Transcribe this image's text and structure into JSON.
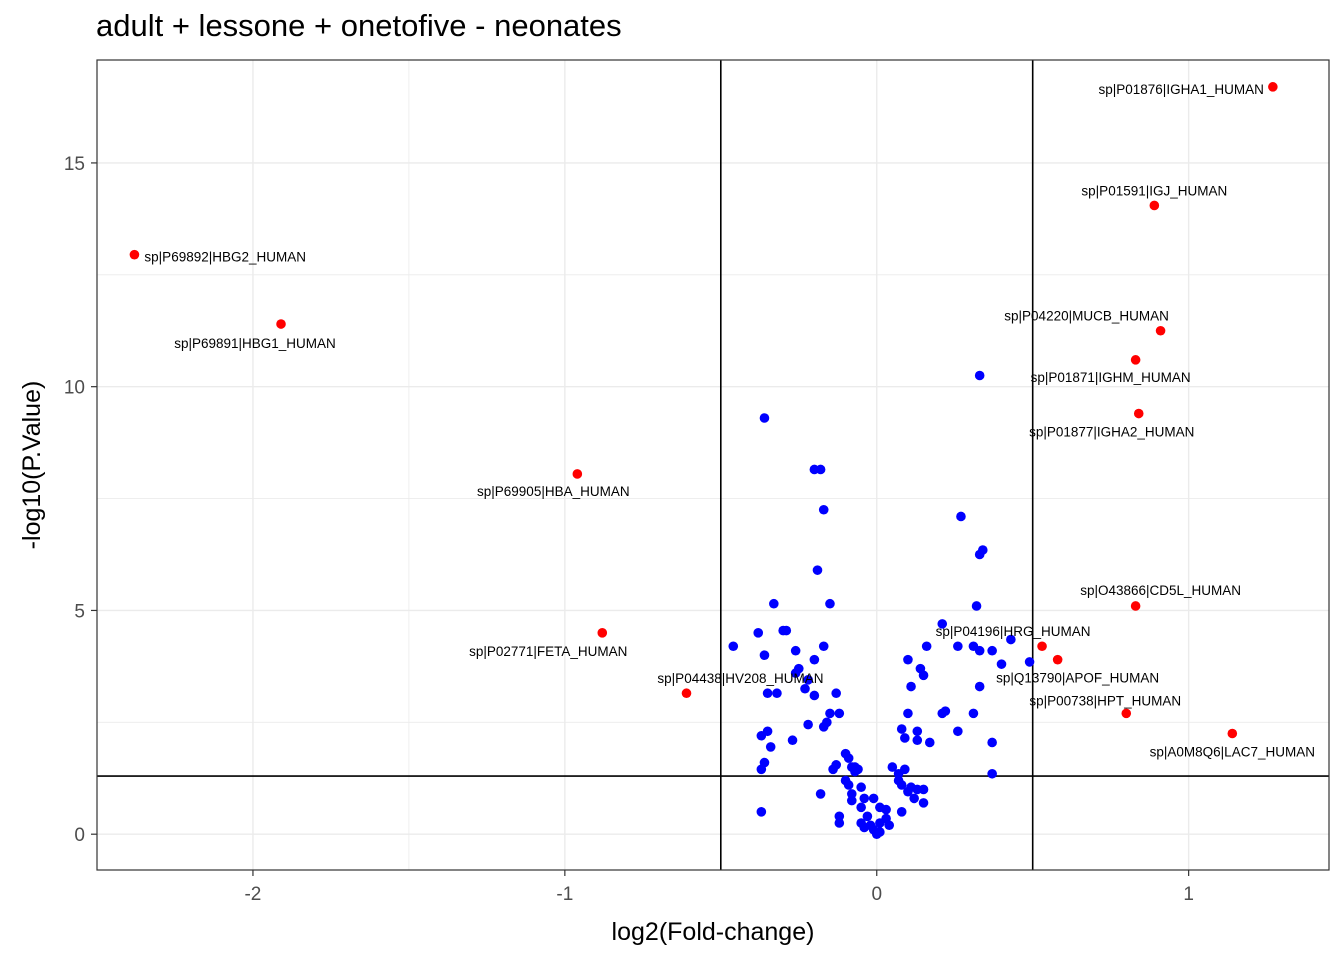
{
  "chart_data": {
    "type": "scatter",
    "title": "adult + lessone + onetofive - neonates",
    "xlabel": "log2(Fold-change)",
    "ylabel": "-log10(P.Value)",
    "xlim": [
      -2.5,
      1.45
    ],
    "ylim": [
      -0.8,
      17.3
    ],
    "x_ticks": [
      -2,
      -1,
      0,
      1
    ],
    "x_tick_labels": [
      "-2",
      "-1",
      "0",
      "1"
    ],
    "y_ticks": [
      0,
      5,
      10,
      15
    ],
    "y_tick_labels": [
      "0",
      "5",
      "10",
      "15"
    ],
    "grid": true,
    "legend": "none",
    "thresholds": {
      "vlines": [
        -0.5,
        0.5
      ],
      "hline": 1.3
    },
    "colors": {
      "significant": "#ff0000",
      "not_significant": "#0000ff",
      "grid": "#ebebeb",
      "panel_border": "#333333",
      "threshold_line": "#000000"
    },
    "series": [
      {
        "color": "#ff0000",
        "points": [
          {
            "x": 1.27,
            "y": 16.7,
            "label": "sp|P01876|IGHA1_HUMAN"
          },
          {
            "x": 0.89,
            "y": 14.05,
            "label": "sp|P01591|IGJ_HUMAN"
          },
          {
            "x": -2.38,
            "y": 12.95,
            "label": "sp|P69892|HBG2_HUMAN"
          },
          {
            "x": -1.91,
            "y": 11.4,
            "label": "sp|P69891|HBG1_HUMAN"
          },
          {
            "x": 0.91,
            "y": 11.25,
            "label": "sp|P04220|MUCB_HUMAN"
          },
          {
            "x": 0.83,
            "y": 10.6,
            "label": "sp|P01871|IGHM_HUMAN"
          },
          {
            "x": 0.84,
            "y": 9.4,
            "label": "sp|P01877|IGHA2_HUMAN"
          },
          {
            "x": -0.96,
            "y": 8.05,
            "label": "sp|P69905|HBA_HUMAN"
          },
          {
            "x": 0.83,
            "y": 5.1,
            "label": "sp|O43866|CD5L_HUMAN"
          },
          {
            "x": -0.88,
            "y": 4.5,
            "label": "sp|P02771|FETA_HUMAN"
          },
          {
            "x": 0.53,
            "y": 4.2,
            "label": "sp|P04196|HRG_HUMAN"
          },
          {
            "x": 0.58,
            "y": 3.9,
            "label": "sp|Q13790|APOF_HUMAN"
          },
          {
            "x": -0.61,
            "y": 3.15,
            "label": "sp|P04438|HV208_HUMAN"
          },
          {
            "x": 0.8,
            "y": 2.7,
            "label": "sp|P00738|HPT_HUMAN"
          },
          {
            "x": 1.14,
            "y": 2.25,
            "label": "sp|A0M8Q6|LAC7_HUMAN"
          }
        ]
      },
      {
        "color": "#0000ff",
        "points": [
          {
            "x": -0.36,
            "y": 9.3
          },
          {
            "x": 0.33,
            "y": 10.25
          },
          {
            "x": -0.2,
            "y": 8.15
          },
          {
            "x": -0.18,
            "y": 8.15
          },
          {
            "x": -0.17,
            "y": 7.25
          },
          {
            "x": 0.27,
            "y": 7.1
          },
          {
            "x": 0.34,
            "y": 6.35
          },
          {
            "x": 0.33,
            "y": 6.25
          },
          {
            "x": -0.19,
            "y": 5.9
          },
          {
            "x": -0.33,
            "y": 5.15
          },
          {
            "x": -0.15,
            "y": 5.15
          },
          {
            "x": 0.32,
            "y": 5.1
          },
          {
            "x": 0.21,
            "y": 4.7
          },
          {
            "x": -0.29,
            "y": 4.55
          },
          {
            "x": -0.3,
            "y": 4.55
          },
          {
            "x": -0.38,
            "y": 4.5
          },
          {
            "x": -0.46,
            "y": 4.2
          },
          {
            "x": -0.17,
            "y": 4.2
          },
          {
            "x": 0.16,
            "y": 4.2
          },
          {
            "x": 0.26,
            "y": 4.2
          },
          {
            "x": 0.31,
            "y": 4.2
          },
          {
            "x": 0.33,
            "y": 4.1
          },
          {
            "x": 0.37,
            "y": 4.1
          },
          {
            "x": -0.26,
            "y": 4.1
          },
          {
            "x": -0.36,
            "y": 4.0
          },
          {
            "x": 0.43,
            "y": 4.35
          },
          {
            "x": -0.2,
            "y": 3.9
          },
          {
            "x": 0.1,
            "y": 3.9
          },
          {
            "x": 0.4,
            "y": 3.8
          },
          {
            "x": 0.49,
            "y": 3.85
          },
          {
            "x": 0.14,
            "y": 3.7
          },
          {
            "x": -0.25,
            "y": 3.7
          },
          {
            "x": -0.26,
            "y": 3.6
          },
          {
            "x": 0.15,
            "y": 3.55
          },
          {
            "x": -0.22,
            "y": 3.45
          },
          {
            "x": 0.33,
            "y": 3.3
          },
          {
            "x": 0.11,
            "y": 3.3
          },
          {
            "x": -0.35,
            "y": 3.15
          },
          {
            "x": -0.32,
            "y": 3.15
          },
          {
            "x": -0.13,
            "y": 3.15
          },
          {
            "x": -0.23,
            "y": 3.25
          },
          {
            "x": -0.2,
            "y": 3.1
          },
          {
            "x": -0.15,
            "y": 2.7
          },
          {
            "x": -0.12,
            "y": 2.7
          },
          {
            "x": 0.1,
            "y": 2.7
          },
          {
            "x": 0.21,
            "y": 2.7
          },
          {
            "x": 0.22,
            "y": 2.75
          },
          {
            "x": 0.31,
            "y": 2.7
          },
          {
            "x": -0.16,
            "y": 2.5
          },
          {
            "x": -0.17,
            "y": 2.4
          },
          {
            "x": -0.22,
            "y": 2.45
          },
          {
            "x": -0.35,
            "y": 2.3
          },
          {
            "x": 0.08,
            "y": 2.35
          },
          {
            "x": 0.13,
            "y": 2.3
          },
          {
            "x": 0.26,
            "y": 2.3
          },
          {
            "x": -0.37,
            "y": 2.2
          },
          {
            "x": -0.27,
            "y": 2.1
          },
          {
            "x": 0.09,
            "y": 2.15
          },
          {
            "x": 0.13,
            "y": 2.1
          },
          {
            "x": 0.17,
            "y": 2.05
          },
          {
            "x": 0.37,
            "y": 2.05
          },
          {
            "x": -0.34,
            "y": 1.95
          },
          {
            "x": -0.36,
            "y": 1.6
          },
          {
            "x": -0.37,
            "y": 1.45
          },
          {
            "x": -0.1,
            "y": 1.8
          },
          {
            "x": -0.09,
            "y": 1.7
          },
          {
            "x": -0.13,
            "y": 1.55
          },
          {
            "x": -0.14,
            "y": 1.45
          },
          {
            "x": -0.08,
            "y": 1.5
          },
          {
            "x": -0.07,
            "y": 1.5
          },
          {
            "x": -0.07,
            "y": 1.4
          },
          {
            "x": -0.06,
            "y": 1.45
          },
          {
            "x": 0.05,
            "y": 1.5
          },
          {
            "x": 0.09,
            "y": 1.45
          },
          {
            "x": 0.07,
            "y": 1.35
          },
          {
            "x": 0.37,
            "y": 1.35
          },
          {
            "x": -0.1,
            "y": 1.2
          },
          {
            "x": -0.09,
            "y": 1.1
          },
          {
            "x": -0.05,
            "y": 1.05
          },
          {
            "x": 0.07,
            "y": 1.2
          },
          {
            "x": 0.08,
            "y": 1.1
          },
          {
            "x": 0.11,
            "y": 1.05
          },
          {
            "x": 0.1,
            "y": 0.95
          },
          {
            "x": 0.13,
            "y": 1.0
          },
          {
            "x": 0.15,
            "y": 1.0
          },
          {
            "x": -0.18,
            "y": 0.9
          },
          {
            "x": -0.08,
            "y": 0.9
          },
          {
            "x": -0.08,
            "y": 0.75
          },
          {
            "x": -0.04,
            "y": 0.8
          },
          {
            "x": -0.01,
            "y": 0.8
          },
          {
            "x": 0.12,
            "y": 0.8
          },
          {
            "x": 0.15,
            "y": 0.7
          },
          {
            "x": -0.05,
            "y": 0.6
          },
          {
            "x": 0.01,
            "y": 0.6
          },
          {
            "x": 0.03,
            "y": 0.55
          },
          {
            "x": 0.08,
            "y": 0.5
          },
          {
            "x": -0.37,
            "y": 0.5
          },
          {
            "x": -0.12,
            "y": 0.4
          },
          {
            "x": -0.03,
            "y": 0.4
          },
          {
            "x": 0.03,
            "y": 0.35
          },
          {
            "x": -0.12,
            "y": 0.25
          },
          {
            "x": -0.05,
            "y": 0.25
          },
          {
            "x": -0.02,
            "y": 0.2
          },
          {
            "x": 0.01,
            "y": 0.25
          },
          {
            "x": 0.04,
            "y": 0.2
          },
          {
            "x": -0.04,
            "y": 0.15
          },
          {
            "x": -0.01,
            "y": 0.1
          },
          {
            "x": 0.01,
            "y": 0.05
          },
          {
            "x": 0.0,
            "y": 0.0
          }
        ]
      }
    ]
  }
}
